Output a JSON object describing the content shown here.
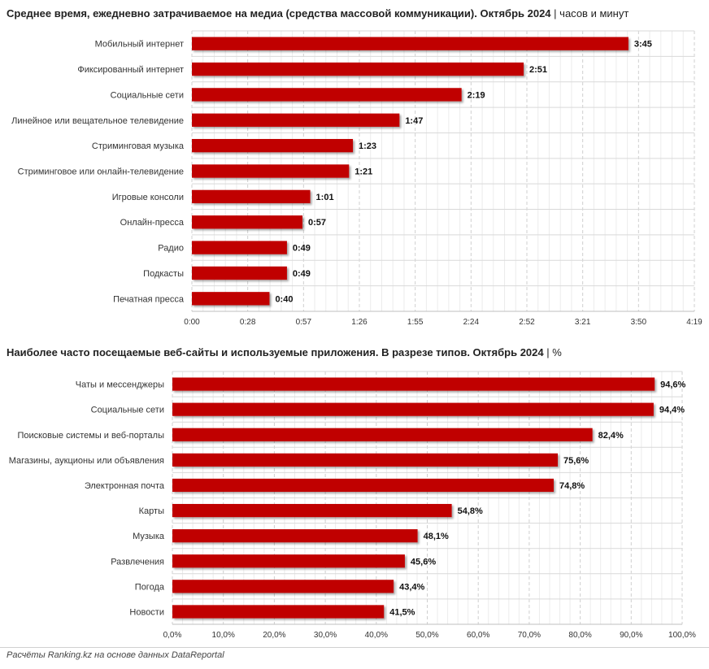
{
  "chart_data": [
    {
      "type": "bar",
      "orientation": "horizontal",
      "title": "Среднее время, ежедневно затрачиваемое на медиа (средства массовой коммуникации). Октябрь 2024",
      "unit": "часов и минут",
      "categories": [
        "Мобильный интернет",
        "Фиксированный интернет",
        "Социальные сети",
        "Линейное или вещательное телевидение",
        "Стриминговая музыка",
        "Стриминговое или онлайн-телевидение",
        "Игровые консоли",
        "Онлайн-пресса",
        "Радио",
        "Подкасты",
        "Печатная пресса"
      ],
      "values_minutes": [
        225,
        171,
        139,
        107,
        83,
        81,
        61,
        57,
        49,
        49,
        40
      ],
      "value_labels": [
        "3:45",
        "2:51",
        "2:19",
        "1:47",
        "1:23",
        "1:21",
        "1:01",
        "0:57",
        "0:49",
        "0:49",
        "0:40"
      ],
      "x_ticks": [
        "0:00",
        "0:28",
        "0:57",
        "1:26",
        "1:55",
        "2:24",
        "2:52",
        "3:21",
        "3:50",
        "4:19"
      ],
      "xlim_minutes": [
        0,
        259
      ],
      "grid": true,
      "bar_color": "#c00000"
    },
    {
      "type": "bar",
      "orientation": "horizontal",
      "title": "Наиболее часто посещаемые веб-сайты и используемые приложения. В разрезе типов. Октябрь 2024",
      "unit": "%",
      "categories": [
        "Чаты и мессенджеры",
        "Социальные сети",
        "Поисковые системы и веб-порталы",
        "Магазины, аукционы или объявления",
        "Электронная почта",
        "Карты",
        "Музыка",
        "Развлечения",
        "Погода",
        "Новости"
      ],
      "values": [
        94.6,
        94.4,
        82.4,
        75.6,
        74.8,
        54.8,
        48.1,
        45.6,
        43.4,
        41.5
      ],
      "value_labels": [
        "94,6%",
        "94,4%",
        "82,4%",
        "75,6%",
        "74,8%",
        "54,8%",
        "48,1%",
        "45,6%",
        "43,4%",
        "41,5%"
      ],
      "x_ticks": [
        "0,0%",
        "10,0%",
        "20,0%",
        "30,0%",
        "40,0%",
        "50,0%",
        "60,0%",
        "70,0%",
        "80,0%",
        "90,0%",
        "100,0%"
      ],
      "xlim": [
        0,
        100
      ],
      "grid": true,
      "bar_color": "#c00000"
    }
  ],
  "footer": "Расчёты Ranking.kz на основе данных DataReportal"
}
